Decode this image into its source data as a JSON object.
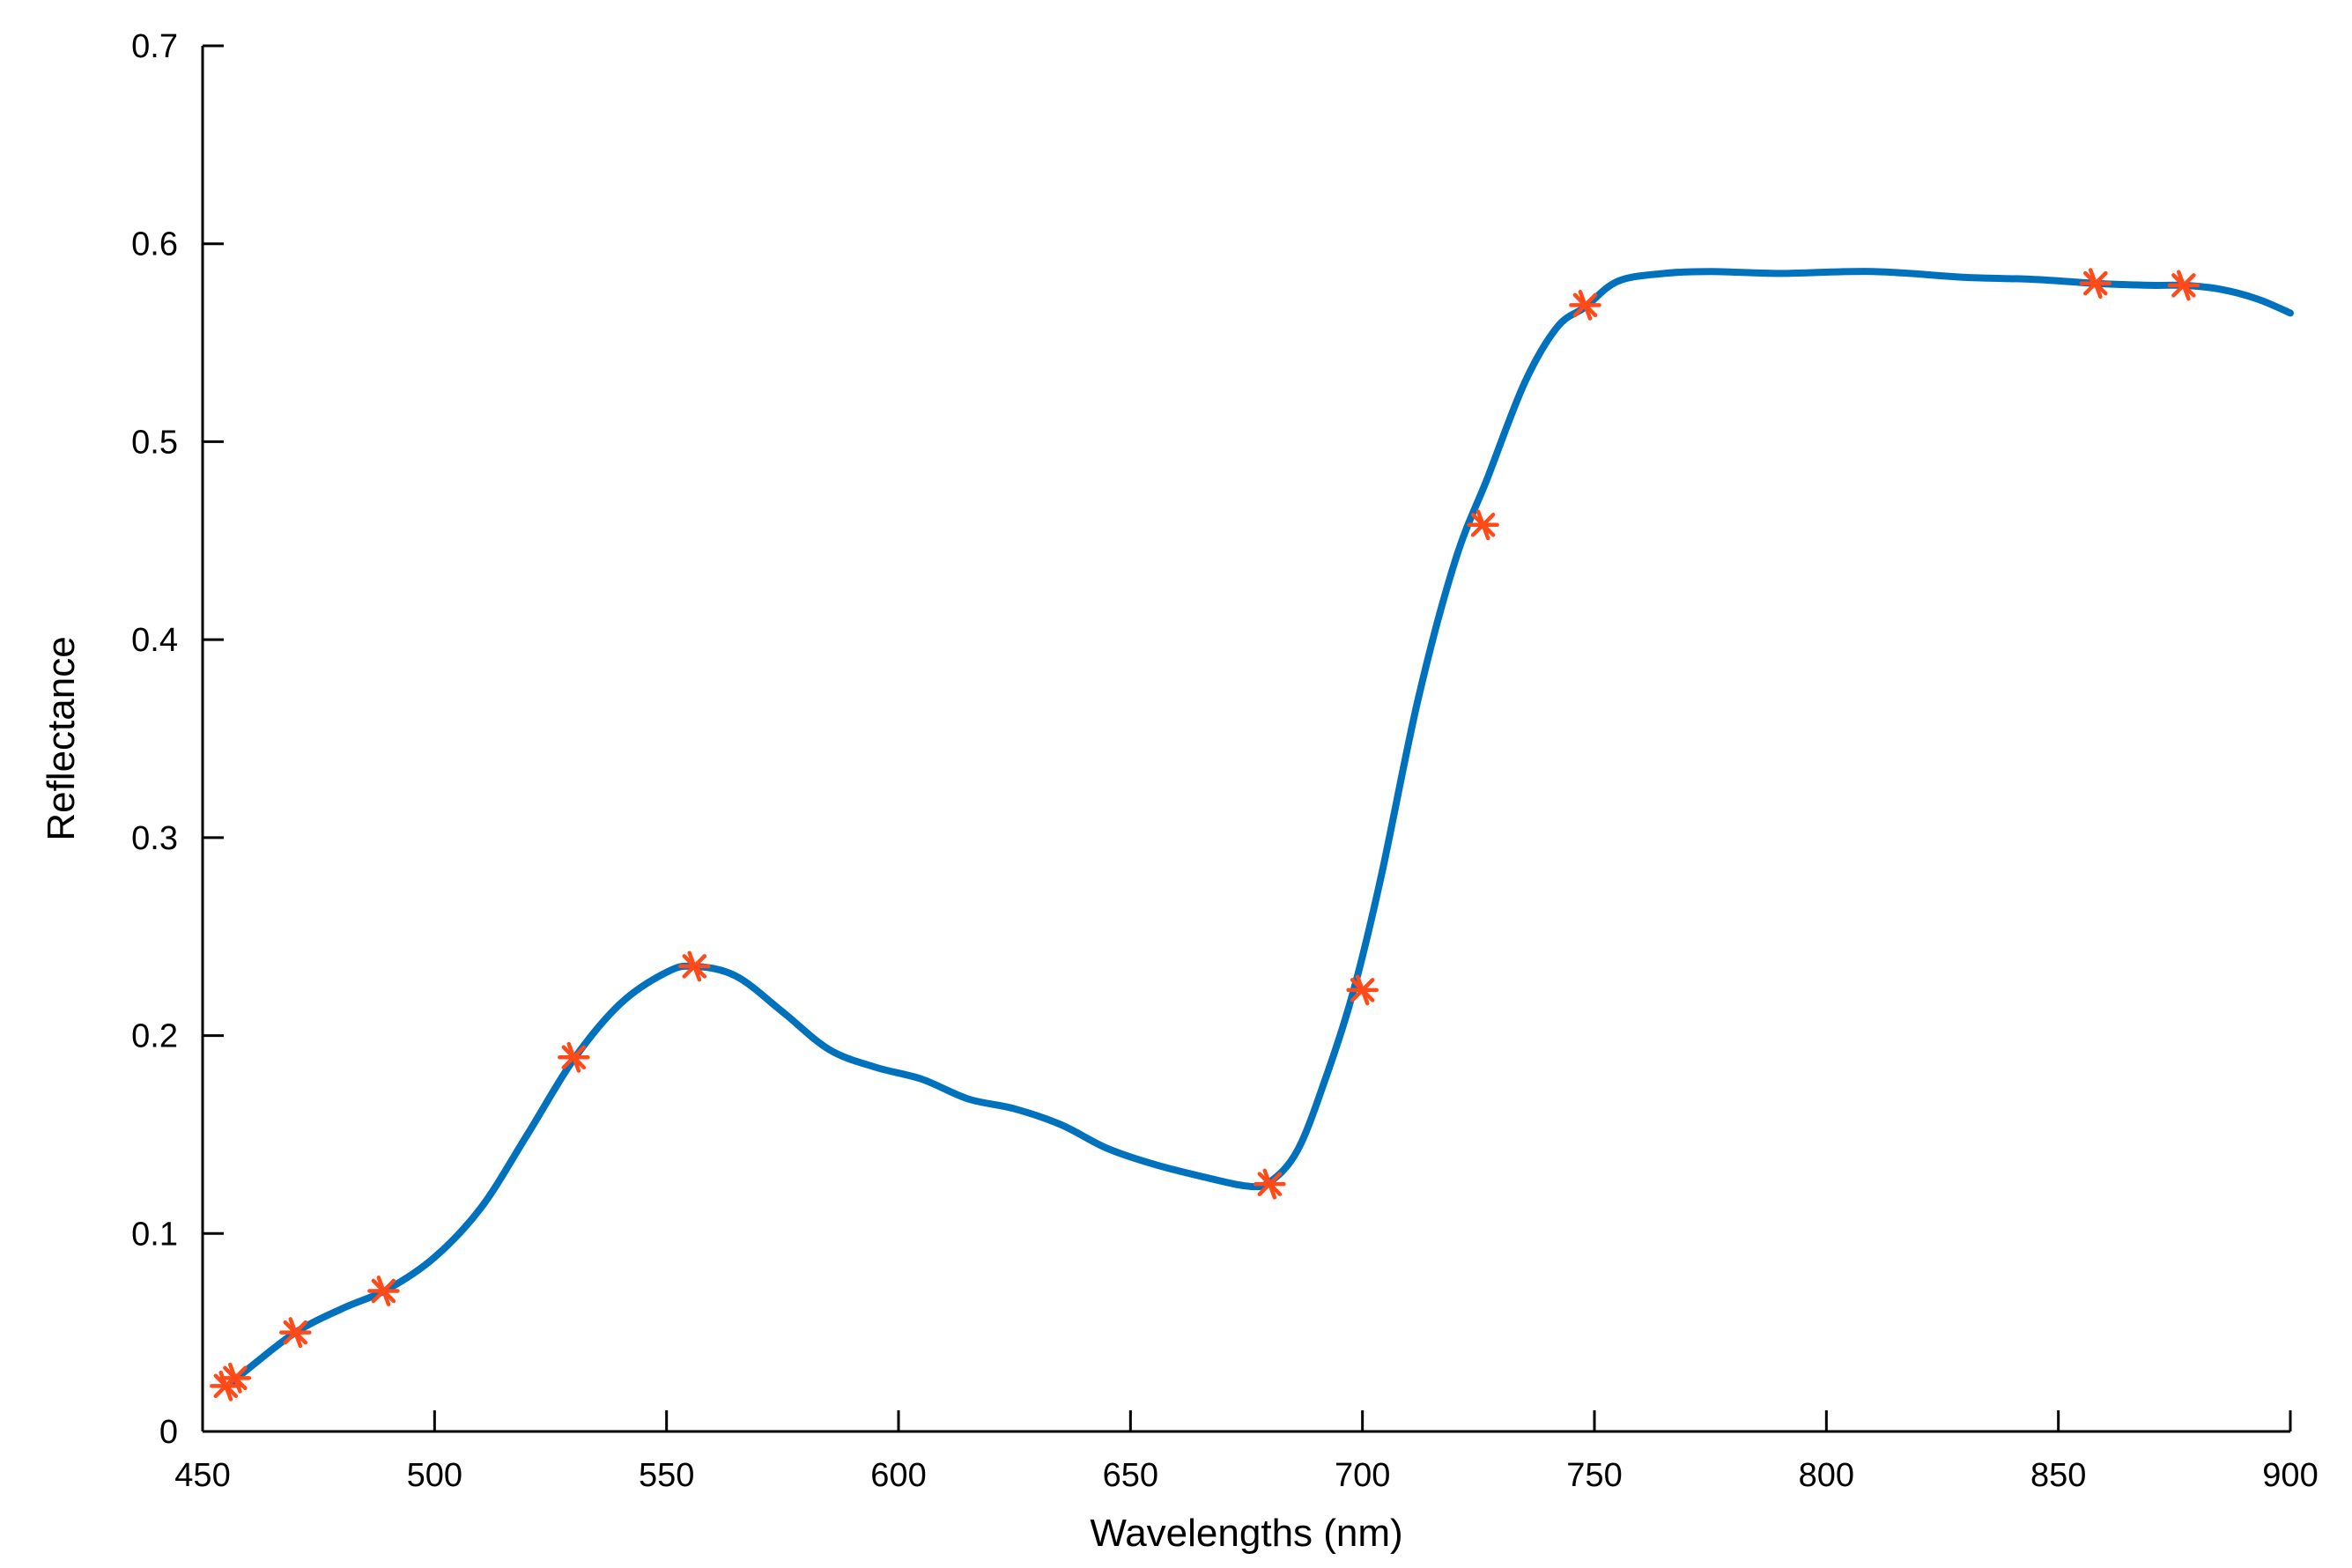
{
  "chart_data": {
    "type": "line",
    "title": "",
    "xlabel": "Wavelengths (nm)",
    "ylabel": "Reflectance",
    "xlim": [
      450,
      900
    ],
    "ylim": [
      0,
      0.7
    ],
    "xticks": [
      450,
      500,
      550,
      600,
      650,
      700,
      750,
      800,
      850,
      900
    ],
    "yticks": [
      0,
      0.1,
      0.2,
      0.3,
      0.4,
      0.5,
      0.6,
      0.7
    ],
    "xtick_labels": [
      "450",
      "500",
      "550",
      "600",
      "650",
      "700",
      "750",
      "800",
      "850",
      "900"
    ],
    "ytick_labels": [
      "0",
      "0.1",
      "0.2",
      "0.3",
      "0.4",
      "0.5",
      "0.6",
      "0.7"
    ],
    "grid": false,
    "legend": "none",
    "series": [
      {
        "type": "line",
        "color": "#0072BD",
        "x": [
          456,
          460,
          470,
          480,
          490,
          500,
          510,
          520,
          530,
          540,
          550,
          556,
          565,
          575,
          585,
          595,
          605,
          615,
          625,
          635,
          645,
          655,
          665,
          675,
          680,
          686,
          692,
          698,
          704,
          712,
          720,
          727,
          735,
          742,
          748,
          755,
          765,
          775,
          790,
          810,
          830,
          845,
          858,
          870,
          877,
          885,
          893,
          900
        ],
        "y": [
          0.024,
          0.032,
          0.05,
          0.062,
          0.072,
          0.088,
          0.113,
          0.15,
          0.188,
          0.216,
          0.232,
          0.235,
          0.23,
          0.212,
          0.193,
          0.184,
          0.178,
          0.168,
          0.163,
          0.155,
          0.143,
          0.135,
          0.129,
          0.124,
          0.126,
          0.142,
          0.178,
          0.222,
          0.28,
          0.37,
          0.44,
          0.482,
          0.53,
          0.558,
          0.568,
          0.581,
          0.585,
          0.586,
          0.585,
          0.586,
          0.583,
          0.582,
          0.58,
          0.579,
          0.579,
          0.577,
          0.572,
          0.565
        ]
      },
      {
        "type": "scatter",
        "marker": "asterisk",
        "color": "#FF4A1A",
        "x": [
          455,
          457,
          470,
          489,
          530,
          556,
          680,
          700,
          726,
          748,
          858,
          877
        ],
        "y": [
          0.023,
          0.027,
          0.05,
          0.071,
          0.189,
          0.235,
          0.125,
          0.223,
          0.458,
          0.569,
          0.58,
          0.579
        ]
      }
    ]
  }
}
